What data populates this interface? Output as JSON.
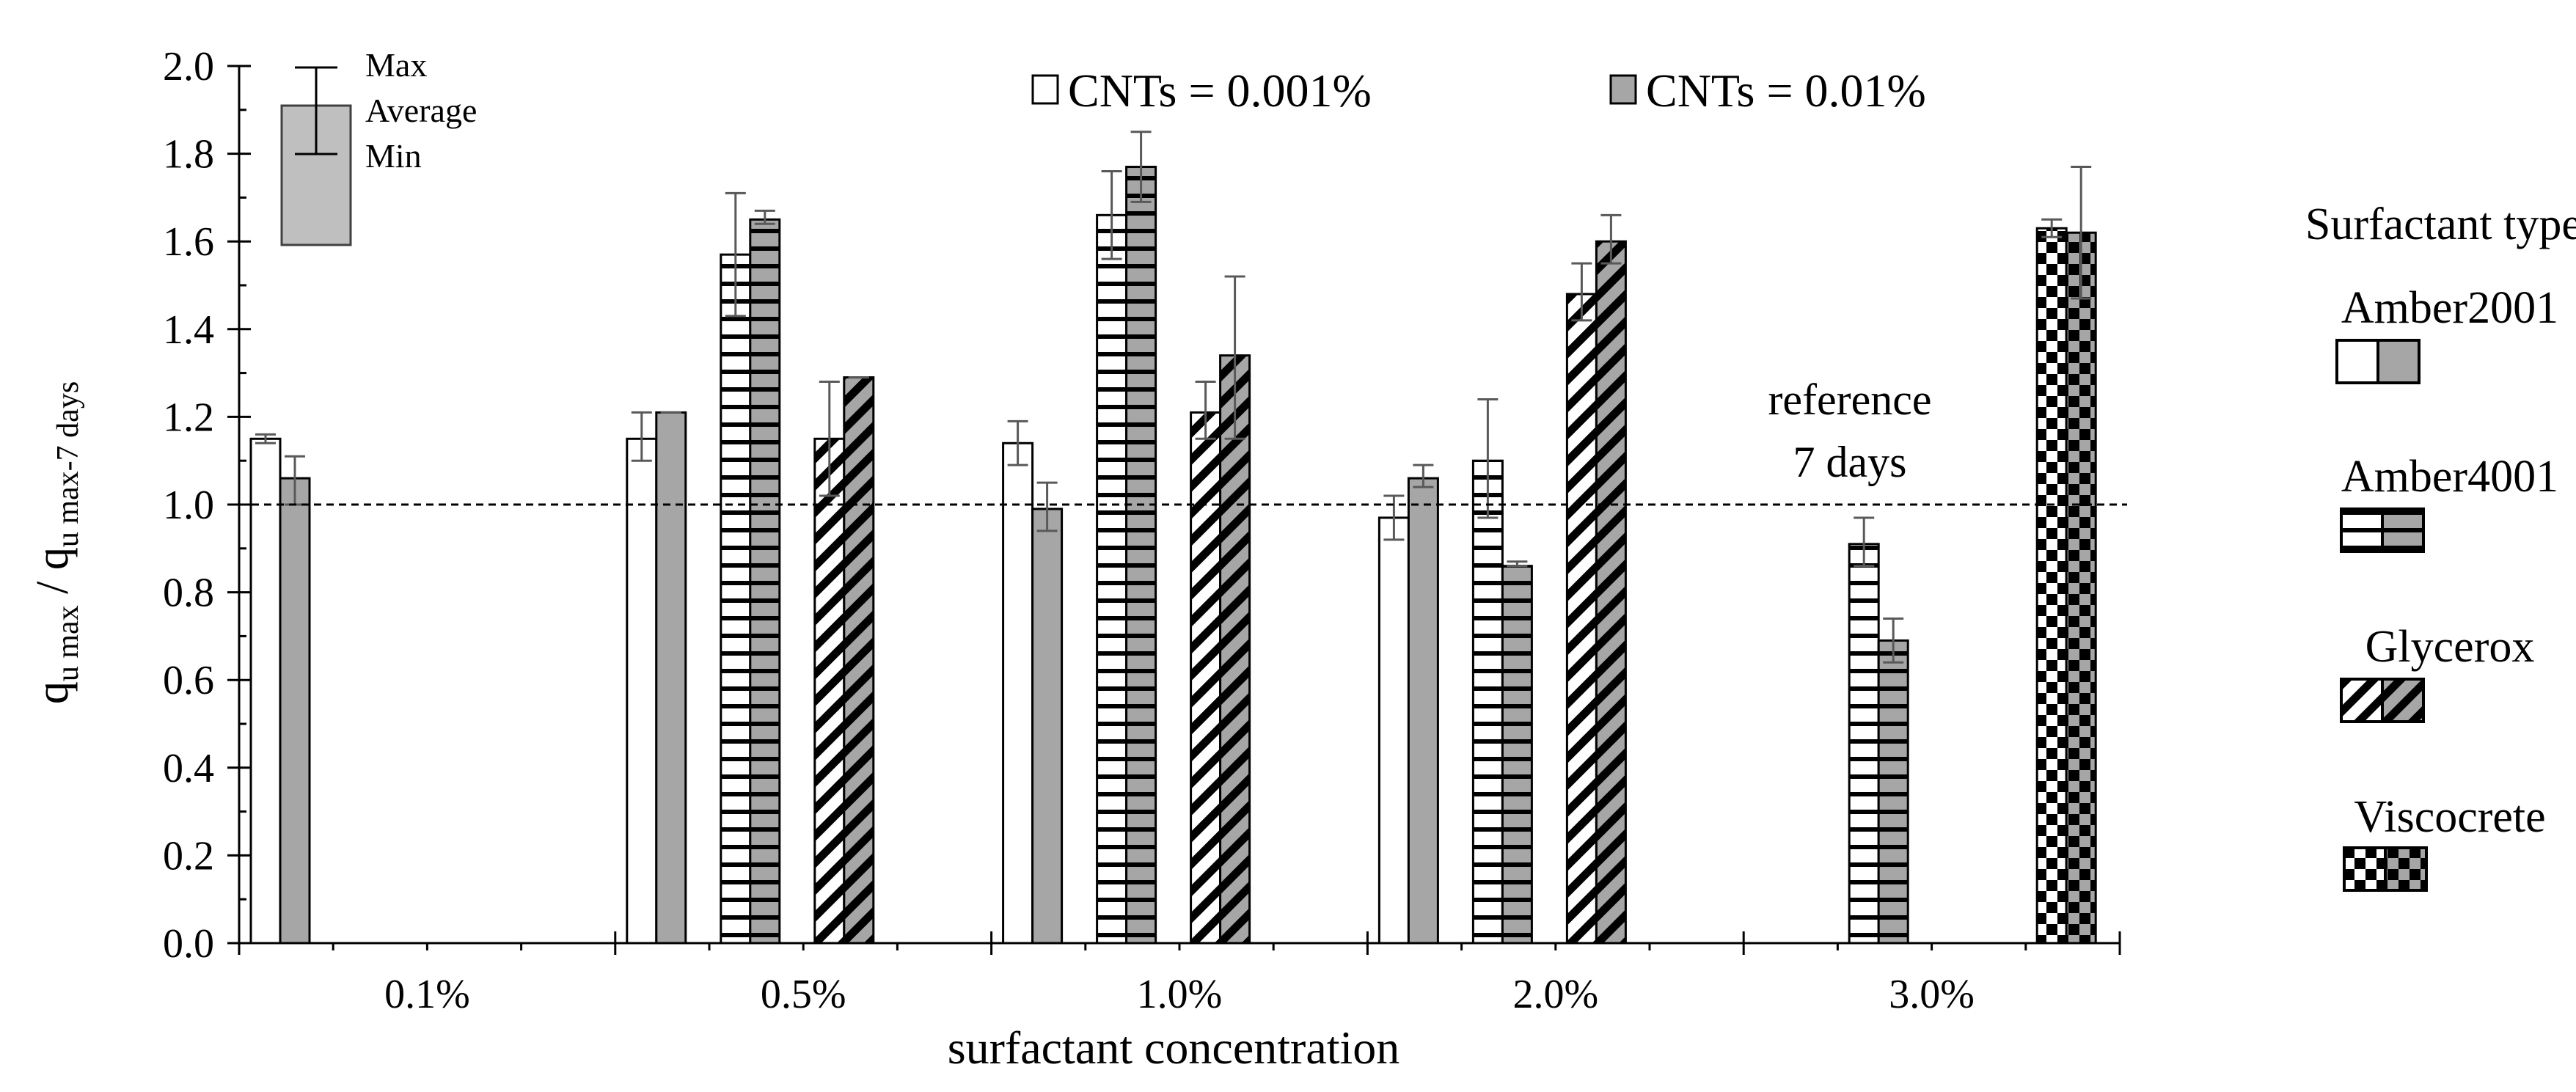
{
  "chart_data": {
    "type": "bar",
    "title": "",
    "xlabel": "surfactant concentration",
    "ylabel_main": "q",
    "ylabel_main_sub": "u max",
    "ylabel_sep": " / ",
    "ylabel_den": "q",
    "ylabel_den_sub": "u max-7 days",
    "ylim": [
      0,
      2.0
    ],
    "yticks": [
      "0.0",
      "0.2",
      "0.4",
      "0.6",
      "0.8",
      "1.0",
      "1.2",
      "1.4",
      "1.6",
      "1.8",
      "2.0"
    ],
    "categories": [
      "0.1%",
      "0.5%",
      "1.0%",
      "2.0%",
      "3.0%"
    ],
    "reference_line": {
      "value": 1.0,
      "label_line1": "reference",
      "label_line2": "7 days"
    },
    "legend_cnts": [
      {
        "label": "CNTs = 0.001%",
        "fill": "white"
      },
      {
        "label": "CNTs = 0.01%",
        "fill": "gray"
      }
    ],
    "errorbar_legend": {
      "max": "Max",
      "average": "Average",
      "min": "Min"
    },
    "surfactant_legend": {
      "title": "Surfactant type:",
      "types": [
        {
          "name": "Amber2001",
          "pattern": "plain"
        },
        {
          "name": "Amber4001",
          "pattern": "hlines"
        },
        {
          "name": "Glycerox",
          "pattern": "diag"
        },
        {
          "name": "Viscocrete",
          "pattern": "check"
        }
      ]
    },
    "bars": [
      {
        "category": "0.1%",
        "surfactant": "Amber2001",
        "cnts": "0.001%",
        "value": 1.15,
        "min": 1.14,
        "max": 1.16
      },
      {
        "category": "0.1%",
        "surfactant": "Amber2001",
        "cnts": "0.01%",
        "value": 1.06,
        "min": 1.0,
        "max": 1.11
      },
      {
        "category": "0.5%",
        "surfactant": "Amber2001",
        "cnts": "0.001%",
        "value": 1.15,
        "min": 1.1,
        "max": 1.21
      },
      {
        "category": "0.5%",
        "surfactant": "Amber2001",
        "cnts": "0.01%",
        "value": 1.21,
        "min": 1.21,
        "max": 1.21
      },
      {
        "category": "0.5%",
        "surfactant": "Amber4001",
        "cnts": "0.001%",
        "value": 1.57,
        "min": 1.43,
        "max": 1.71
      },
      {
        "category": "0.5%",
        "surfactant": "Amber4001",
        "cnts": "0.01%",
        "value": 1.65,
        "min": 1.64,
        "max": 1.67
      },
      {
        "category": "0.5%",
        "surfactant": "Glycerox",
        "cnts": "0.001%",
        "value": 1.15,
        "min": 1.02,
        "max": 1.28
      },
      {
        "category": "0.5%",
        "surfactant": "Glycerox",
        "cnts": "0.01%",
        "value": 1.29,
        "min": 1.29,
        "max": 1.29
      },
      {
        "category": "1.0%",
        "surfactant": "Amber2001",
        "cnts": "0.001%",
        "value": 1.14,
        "min": 1.09,
        "max": 1.19
      },
      {
        "category": "1.0%",
        "surfactant": "Amber2001",
        "cnts": "0.01%",
        "value": 0.99,
        "min": 0.94,
        "max": 1.05
      },
      {
        "category": "1.0%",
        "surfactant": "Amber4001",
        "cnts": "0.001%",
        "value": 1.66,
        "min": 1.56,
        "max": 1.76
      },
      {
        "category": "1.0%",
        "surfactant": "Amber4001",
        "cnts": "0.01%",
        "value": 1.77,
        "min": 1.69,
        "max": 1.85
      },
      {
        "category": "1.0%",
        "surfactant": "Glycerox",
        "cnts": "0.001%",
        "value": 1.21,
        "min": 1.15,
        "max": 1.28
      },
      {
        "category": "1.0%",
        "surfactant": "Glycerox",
        "cnts": "0.01%",
        "value": 1.34,
        "min": 1.15,
        "max": 1.52
      },
      {
        "category": "2.0%",
        "surfactant": "Amber2001",
        "cnts": "0.001%",
        "value": 0.97,
        "min": 0.92,
        "max": 1.02
      },
      {
        "category": "2.0%",
        "surfactant": "Amber2001",
        "cnts": "0.01%",
        "value": 1.06,
        "min": 1.04,
        "max": 1.09
      },
      {
        "category": "2.0%",
        "surfactant": "Amber4001",
        "cnts": "0.001%",
        "value": 1.1,
        "min": 0.97,
        "max": 1.24
      },
      {
        "category": "2.0%",
        "surfactant": "Amber4001",
        "cnts": "0.01%",
        "value": 0.86,
        "min": 0.86,
        "max": 0.87
      },
      {
        "category": "2.0%",
        "surfactant": "Glycerox",
        "cnts": "0.001%",
        "value": 1.48,
        "min": 1.42,
        "max": 1.55
      },
      {
        "category": "2.0%",
        "surfactant": "Glycerox",
        "cnts": "0.01%",
        "value": 1.6,
        "min": 1.55,
        "max": 1.66
      },
      {
        "category": "3.0%",
        "surfactant": "Amber4001",
        "cnts": "0.001%",
        "value": 0.91,
        "min": 0.86,
        "max": 0.97
      },
      {
        "category": "3.0%",
        "surfactant": "Amber4001",
        "cnts": "0.01%",
        "value": 0.69,
        "min": 0.64,
        "max": 0.74
      },
      {
        "category": "3.0%",
        "surfactant": "Viscocrete",
        "cnts": "0.001%",
        "value": 1.63,
        "min": 1.61,
        "max": 1.65
      },
      {
        "category": "3.0%",
        "surfactant": "Viscocrete",
        "cnts": "0.01%",
        "value": 1.62,
        "min": 1.47,
        "max": 1.77
      }
    ]
  }
}
